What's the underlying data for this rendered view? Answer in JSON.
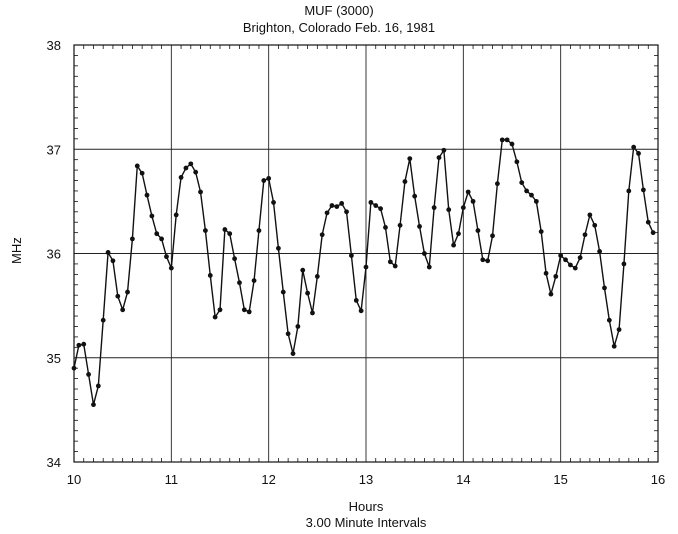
{
  "chart_data": {
    "type": "line",
    "title": "MUF (3000)",
    "subtitle": "Brighton, Colorado Feb. 16, 1981",
    "xlabel": "Hours",
    "xlabel_sub": "3.00 Minute Intervals",
    "ylabel": "MHz",
    "xlim": [
      10,
      16
    ],
    "ylim": [
      34,
      38
    ],
    "xticks": [
      "10",
      "11",
      "12",
      "13",
      "14",
      "15",
      "16"
    ],
    "yticks": [
      "34",
      "35",
      "36",
      "37",
      "38"
    ],
    "grid": true,
    "series": [
      {
        "x_start": 10.0,
        "x_step": 0.05,
        "values": [
          34.9,
          35.12,
          35.13,
          34.84,
          34.55,
          34.73,
          35.36,
          36.01,
          35.93,
          35.59,
          35.46,
          35.63,
          36.14,
          36.84,
          36.77,
          36.56,
          36.36,
          36.19,
          36.14,
          35.97,
          35.86,
          36.37,
          36.73,
          36.82,
          36.86,
          36.78,
          36.59,
          36.22,
          35.79,
          35.39,
          35.46,
          36.23,
          36.19,
          35.95,
          35.72,
          35.46,
          35.44,
          35.74,
          36.22,
          36.7,
          36.72,
          36.49,
          36.05,
          35.63,
          35.23,
          35.04,
          35.3,
          35.84,
          35.62,
          35.43,
          35.78,
          36.18,
          36.39,
          36.46,
          36.45,
          36.48,
          36.4,
          35.98,
          35.55,
          35.45,
          35.87,
          36.49,
          36.46,
          36.43,
          36.25,
          35.92,
          35.88,
          36.27,
          36.69,
          36.91,
          36.55,
          36.26,
          36.0,
          35.87,
          36.44,
          36.92,
          36.99,
          36.42,
          36.08,
          36.19,
          36.44,
          36.59,
          36.5,
          36.22,
          35.94,
          35.93,
          36.17,
          36.67,
          37.09,
          37.09,
          37.05,
          36.88,
          36.68,
          36.6,
          36.56,
          36.5,
          36.21,
          35.81,
          35.61,
          35.78,
          35.98,
          35.94,
          35.89,
          35.86,
          35.96,
          36.18,
          36.37,
          36.27,
          36.02,
          35.67,
          35.36,
          35.11,
          35.27,
          35.9,
          36.6,
          37.02,
          36.96,
          36.61,
          36.3,
          36.2
        ]
      }
    ]
  }
}
